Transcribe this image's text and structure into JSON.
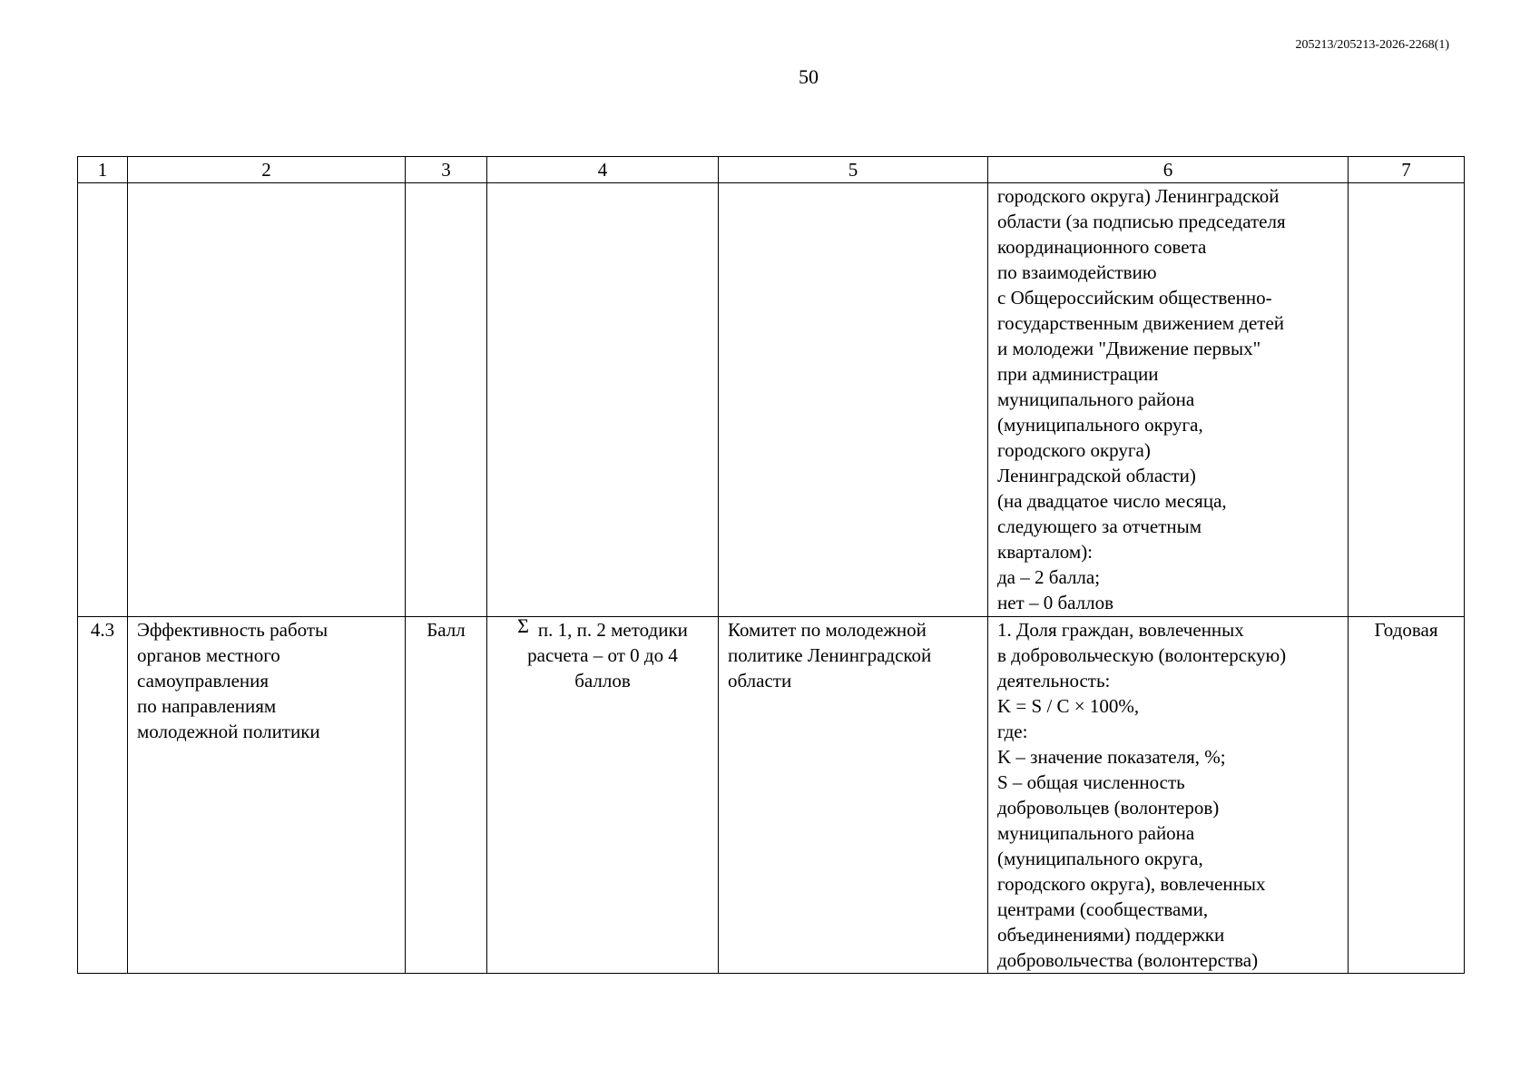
{
  "doc_id": "205213/205213-2026-2268(1)",
  "page_number": "50",
  "table": {
    "headers": [
      "1",
      "2",
      "3",
      "4",
      "5",
      "6",
      "7"
    ],
    "row1": {
      "c1": "",
      "c2": "",
      "c3": "",
      "c4": "",
      "c5": "",
      "c6": "городского округа) Ленинградской\nобласти (за подписью председателя\nкоординационного совета\nпо взаимодействию\nс Общероссийским общественно-\nгосударственным движением детей\nи молодежи \"Движение первых\"\nпри администрации\nмуниципального района\n(муниципального округа,\nгородского округа)\nЛенинградской области)\n(на двадцатое число месяца,\nследующего за отчетным\nкварталом):\nда – 2 балла;\nнет – 0 баллов",
      "c7": ""
    },
    "row2": {
      "c1": "4.3",
      "c2": "Эффективность работы\nорганов местного\nсамоуправления\nпо направлениям\nмолодежной политики",
      "c3": "Балл",
      "c4_symbol": "Σ",
      "c4": "п. 1, п. 2 методики\nрасчета – от 0 до 4\nбаллов",
      "c5": "Комитет по молодежной\nполитике Ленинградской\nобласти",
      "c6": "1. Доля граждан, вовлеченных\nв добровольческую (волонтерскую)\nдеятельность:\nK = S / C × 100%,\nгде:\nK – значение показателя, %;\nS – общая численность\nдобровольцев (волонтеров)\nмуниципального района\n(муниципального округа,\nгородского округа), вовлеченных\nцентрами (сообществами,\nобъединениями) поддержки\nдобровольчества (волонтерства)",
      "c7": "Годовая"
    }
  }
}
